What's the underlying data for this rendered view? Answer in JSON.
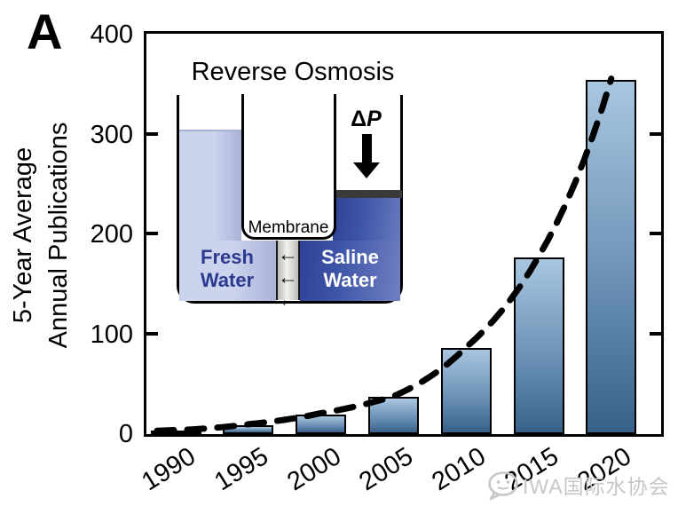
{
  "figure": {
    "panel_label": "A"
  },
  "chart_data": {
    "type": "bar",
    "title": "",
    "ylabel_lines": [
      "5-Year Average",
      "Annual Publications"
    ],
    "xlabel": "",
    "categories": [
      "1990",
      "1995",
      "2000",
      "2005",
      "2010",
      "2015",
      "2020"
    ],
    "values": [
      3,
      9,
      20,
      37,
      86,
      177,
      355
    ],
    "yticks": [
      0,
      100,
      200,
      300,
      400
    ],
    "ylim": [
      0,
      400
    ],
    "grid": false,
    "legend": null,
    "bar_style": {
      "fill_top": "#a9c6e0",
      "fill_mid": "#6d93b7",
      "fill_bottom": "#38618a",
      "border": "#000000"
    },
    "trendline": {
      "type": "dashed-exponential",
      "color": "#000000",
      "x": [
        1990,
        1995,
        2000,
        2005,
        2010,
        2015,
        2020
      ],
      "values": [
        3,
        9,
        20,
        37,
        86,
        177,
        355
      ]
    }
  },
  "inset": {
    "title": "Reverse Osmosis",
    "fresh_label": "Fresh Water",
    "saline_label": "Saline Water",
    "membrane_label": "Membrane",
    "pressure_delta": "Δ",
    "pressure_symbol": "P",
    "flow_arrow": "←",
    "colors": {
      "fresh_water_light": "#ccd3ed",
      "fresh_water_dark": "#a9b3d8",
      "saline_water_dark": "#2e4198",
      "saline_water_light": "#6f80c2",
      "membrane_light": "#f2f2ee",
      "membrane_dark": "#bcbcb6",
      "piston": "#3a3a3a"
    }
  },
  "watermark": {
    "text": "IWA国际水协会"
  }
}
